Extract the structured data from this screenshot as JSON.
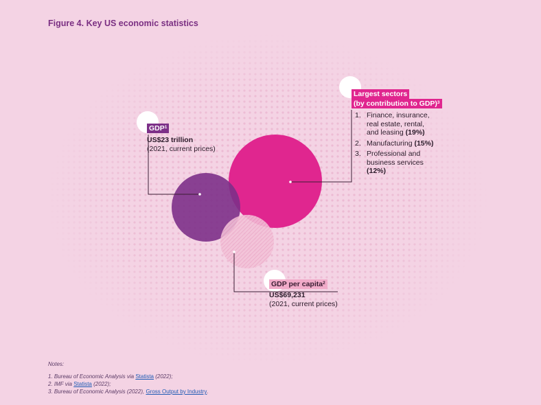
{
  "title": "Figure 4. Key US economic statistics",
  "gdp": {
    "label": "GDP",
    "note_mark": "1",
    "value": "US$23 trillion",
    "detail": "(2021, current prices)"
  },
  "sectors": {
    "label_line1": "Largest sectors",
    "label_line2": "(by contribution to GDP)",
    "note_mark": "3",
    "items": [
      {
        "num": "1.",
        "text": "Finance, insurance, real estate, rental, and leasing",
        "share": "(19%)"
      },
      {
        "num": "2.",
        "text": "Manufacturing",
        "share": "(15%)"
      },
      {
        "num": "3.",
        "text": "Professional and business services",
        "share": "(12%)"
      }
    ]
  },
  "gdp_per_capita": {
    "label": "GDP per capita",
    "note_mark": "2",
    "value": "US$69,231",
    "detail": "(2021, current prices)"
  },
  "notes": {
    "heading": "Notes:",
    "lines": [
      {
        "before": "1. Bureau of Economic Analysis via ",
        "link": "Statista",
        "after": " (2022);"
      },
      {
        "before": "2. IMF via ",
        "link": "Statista",
        "after": " (2022);"
      },
      {
        "before": "3. Bureau of Economic Analysis (2022), ",
        "link": "Gross Output by Industry",
        "after": "."
      }
    ]
  },
  "colors": {
    "background": "#f4d3e4",
    "gdp": "#7d3088",
    "sectors": "#e0268f",
    "per_capita": "#f1abc9"
  }
}
